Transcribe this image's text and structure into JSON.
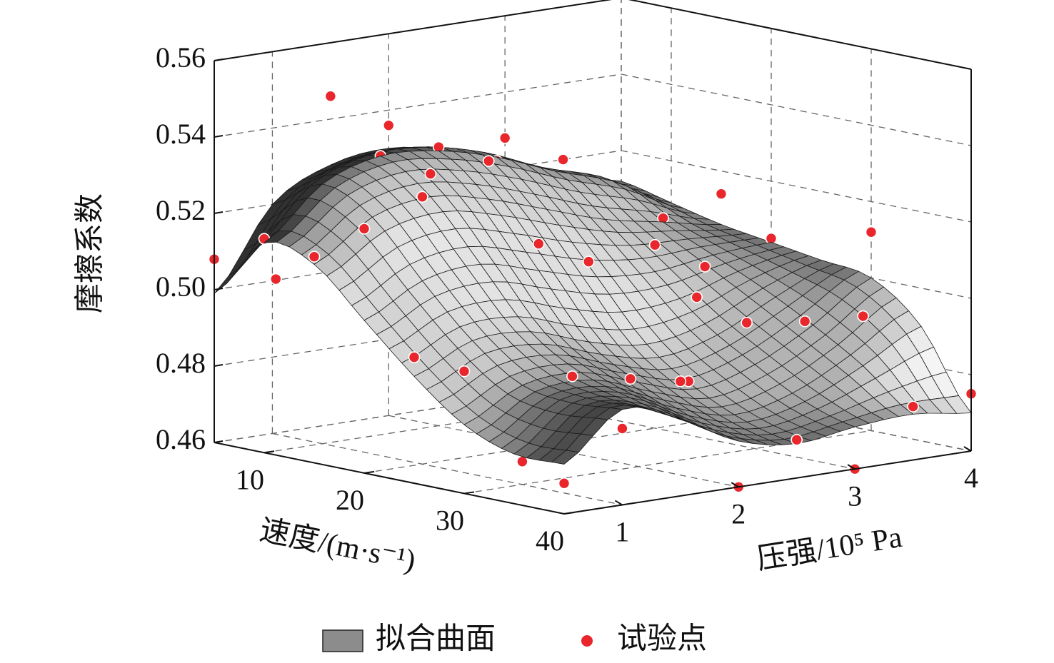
{
  "chart_data": {
    "type": "surface3d",
    "xlabel": "速度/(m·s⁻¹)",
    "ylabel": "压强/10⁵ Pa",
    "zlabel": "摩擦系数",
    "xlim": [
      5,
      40
    ],
    "xticks": [
      10,
      20,
      30,
      40
    ],
    "ylim": [
      0.5,
      4
    ],
    "yticks": [
      1,
      2,
      3,
      4
    ],
    "zlim": [
      0.46,
      0.56
    ],
    "zticks": [
      0.46,
      0.48,
      {
        "value": 0.5,
        "label": "0.50"
      },
      0.52,
      0.54,
      0.56
    ],
    "grid": true,
    "surface": {
      "name": "拟合曲面",
      "color": "#8c8c8c",
      "x": [
        5,
        10,
        15,
        20,
        25,
        30,
        35,
        40
      ],
      "y": [
        0.5,
        1,
        1.5,
        2,
        2.5,
        3,
        3.5,
        4
      ],
      "z": [
        [
          0.499,
          0.52,
          0.528,
          0.53,
          0.527,
          0.52,
          0.517,
          0.512
        ],
        [
          0.515,
          0.528,
          0.533,
          0.532,
          0.528,
          0.522,
          0.517,
          0.509
        ],
        [
          0.512,
          0.522,
          0.525,
          0.522,
          0.517,
          0.512,
          0.509,
          0.506
        ],
        [
          0.5,
          0.508,
          0.51,
          0.506,
          0.502,
          0.501,
          0.503,
          0.504
        ],
        [
          0.488,
          0.495,
          0.495,
          0.49,
          0.487,
          0.49,
          0.497,
          0.502
        ],
        [
          0.478,
          0.486,
          0.487,
          0.482,
          0.478,
          0.482,
          0.49,
          0.5
        ],
        [
          0.473,
          0.484,
          0.483,
          0.476,
          0.472,
          0.475,
          0.482,
          0.49
        ],
        [
          0.473,
          0.485,
          0.48,
          0.472,
          0.469,
          0.471,
          0.472,
          0.47
        ]
      ]
    },
    "series": [
      {
        "name": "试验点",
        "color": "#e8262b",
        "x": [
          5,
          10,
          10,
          15,
          5,
          5,
          10,
          10,
          15,
          20,
          20,
          5,
          10,
          15,
          5,
          25,
          30,
          20,
          15,
          25,
          20,
          15,
          10,
          15,
          25,
          30,
          20,
          30,
          35,
          35,
          35,
          35,
          35,
          35,
          40,
          40,
          30,
          40,
          40,
          40,
          40,
          40,
          40
        ],
        "y": [
          0.5,
          0.5,
          0.6,
          0.5,
          1.5,
          2,
          1.5,
          2,
          1.5,
          1,
          0.5,
          3,
          2.5,
          2,
          3.5,
          0.5,
          0.5,
          2,
          2.5,
          2,
          3,
          3.5,
          4,
          4,
          3,
          2.5,
          4,
          4,
          2.5,
          3,
          3.5,
          1,
          1.5,
          2,
          1.5,
          1,
          1,
          0.5,
          2,
          2.5,
          3,
          3.5,
          4
        ],
        "z": [
          0.508,
          0.516,
          0.505,
          0.514,
          0.546,
          0.536,
          0.533,
          0.533,
          0.531,
          0.53,
          0.524,
          0.528,
          0.527,
          0.532,
          0.52,
          0.493,
          0.492,
          0.513,
          0.51,
          0.511,
          0.508,
          0.51,
          0.506,
          0.514,
          0.505,
          0.502,
          0.505,
          0.512,
          0.498,
          0.496,
          0.495,
          0.491,
          0.488,
          0.485,
          0.49,
          0.48,
          0.466,
          0.468,
          0.46,
          0.47,
          0.46,
          0.474,
          0.475
        ]
      }
    ]
  }
}
